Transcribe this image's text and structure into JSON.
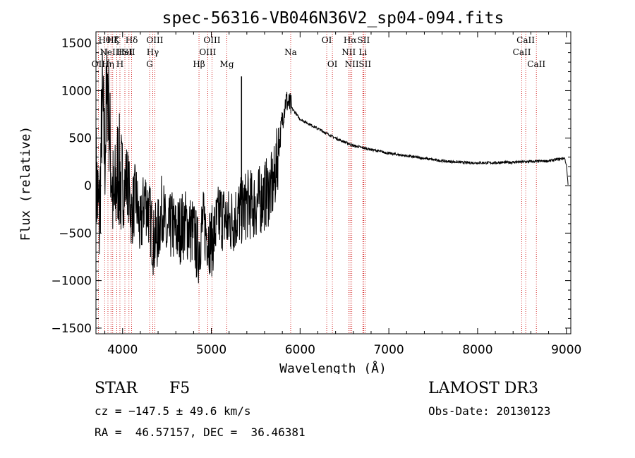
{
  "chart_data": {
    "type": "line",
    "title": "spec-56316-VB046N36V2_sp04-094.fits",
    "xlabel": "Wavelength (Å)",
    "ylabel": "Flux (relative)",
    "xlim": [
      3700,
      9050
    ],
    "ylim": [
      -1560,
      1620
    ],
    "xticks": [
      4000,
      5000,
      6000,
      7000,
      8000,
      9000
    ],
    "yticks": [
      -1500,
      -1000,
      -500,
      0,
      500,
      1000,
      1500
    ],
    "series": [
      {
        "name": "flux",
        "anchors": [
          [
            3700,
            100
          ],
          [
            3740,
            -400
          ],
          [
            3770,
            900
          ],
          [
            3800,
            300
          ],
          [
            3830,
            1150
          ],
          [
            3860,
            400
          ],
          [
            3900,
            -300
          ],
          [
            3950,
            200
          ],
          [
            4000,
            -100
          ],
          [
            4050,
            100
          ],
          [
            4100,
            -300
          ],
          [
            4150,
            -100
          ],
          [
            4200,
            -500
          ],
          [
            4250,
            -100
          ],
          [
            4300,
            -300
          ],
          [
            4350,
            -600
          ],
          [
            4400,
            -500
          ],
          [
            4450,
            -200
          ],
          [
            4500,
            -600
          ],
          [
            4550,
            -400
          ],
          [
            4600,
            -500
          ],
          [
            4700,
            -400
          ],
          [
            4800,
            -500
          ],
          [
            4850,
            -700
          ],
          [
            4900,
            -400
          ],
          [
            5000,
            -600
          ],
          [
            5100,
            -300
          ],
          [
            5200,
            -400
          ],
          [
            5300,
            -300
          ],
          [
            5400,
            -200
          ],
          [
            5500,
            -200
          ],
          [
            5600,
            -100
          ],
          [
            5700,
            0
          ],
          [
            5760,
            400
          ],
          [
            5800,
            700
          ],
          [
            5840,
            900
          ],
          [
            5880,
            850
          ],
          [
            6000,
            700
          ],
          [
            6200,
            600
          ],
          [
            6400,
            500
          ],
          [
            6600,
            420
          ],
          [
            6800,
            380
          ],
          [
            7000,
            340
          ],
          [
            7300,
            300
          ],
          [
            7600,
            260
          ],
          [
            7900,
            240
          ],
          [
            8200,
            240
          ],
          [
            8500,
            250
          ],
          [
            8800,
            260
          ],
          [
            8980,
            290
          ],
          [
            9000,
            220
          ],
          [
            9020,
            0
          ]
        ],
        "spike": {
          "x": 5340,
          "y": 1150
        }
      }
    ],
    "lines": [
      {
        "x": 3727,
        "label": "OII",
        "row": 3
      },
      {
        "x": 3798,
        "label": "Hθ",
        "row": 1
      },
      {
        "x": 3835,
        "label": "Hη",
        "row": 3
      },
      {
        "x": 3869,
        "label": "NeIII",
        "row": 2
      },
      {
        "x": 3889,
        "label": "Hζ",
        "row": 1
      },
      {
        "x": 3934,
        "label": "K",
        "row": 1
      },
      {
        "x": 3970,
        "label": "H",
        "row": 3
      },
      {
        "x": 4026,
        "label": "HeI",
        "row": 2
      },
      {
        "x": 4072,
        "label": "SII",
        "row": 2
      },
      {
        "x": 4102,
        "label": "Hδ",
        "row": 1
      },
      {
        "x": 4305,
        "label": "G",
        "row": 3
      },
      {
        "x": 4340,
        "label": "Hγ",
        "row": 2
      },
      {
        "x": 4363,
        "label": "OIII",
        "row": 1
      },
      {
        "x": 4861,
        "label": "Hβ",
        "row": 3
      },
      {
        "x": 4959,
        "label": "OIII",
        "row": 2
      },
      {
        "x": 5007,
        "label": "OIII",
        "row": 1
      },
      {
        "x": 5175,
        "label": "Mg",
        "row": 3
      },
      {
        "x": 5894,
        "label": "Na",
        "row": 2
      },
      {
        "x": 6300,
        "label": "OI",
        "row": 1
      },
      {
        "x": 6364,
        "label": "OI",
        "row": 3
      },
      {
        "x": 6548,
        "label": "NII",
        "row": 2
      },
      {
        "x": 6563,
        "label": "Hα",
        "row": 1
      },
      {
        "x": 6583,
        "label": "NII",
        "row": 3
      },
      {
        "x": 6707,
        "label": "Li",
        "row": 2
      },
      {
        "x": 6716,
        "label": "SII",
        "row": 1
      },
      {
        "x": 6731,
        "label": "SII",
        "row": 3
      },
      {
        "x": 8498,
        "label": "CaII",
        "row": 2
      },
      {
        "x": 8542,
        "label": "CaII",
        "row": 1
      },
      {
        "x": 8662,
        "label": "CaII",
        "row": 3
      }
    ]
  },
  "info": {
    "class": "STAR",
    "subclass": "F5",
    "survey": "LAMOST DR3",
    "cz": "cz = −147.5 ± 49.6 km/s",
    "obs_date": "Obs-Date: 20130123",
    "coords": "RA =  46.57157, DEC =  36.46381"
  },
  "colors": {
    "spectrum": "#000000",
    "line_marker": "#cc0000",
    "axes": "#000000"
  }
}
